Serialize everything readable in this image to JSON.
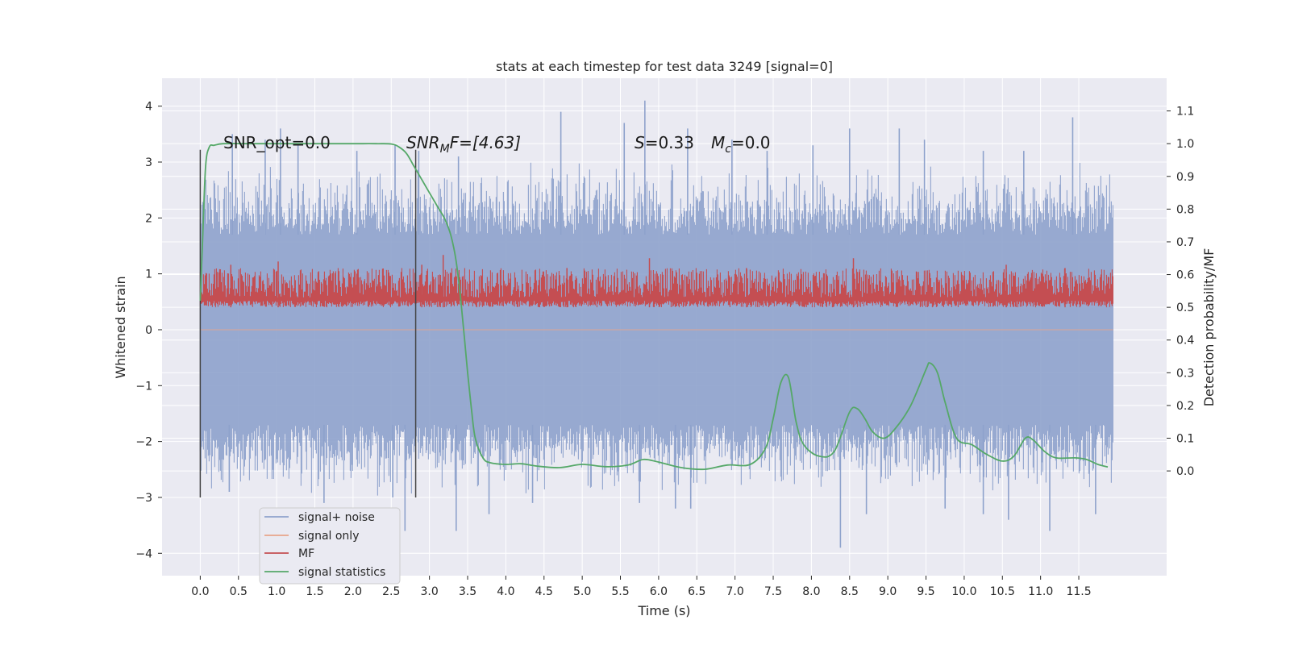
{
  "chart_data": {
    "type": "line",
    "title": "stats at each timestep for test data 3249 [signal=0]",
    "xlabel": "Time (s)",
    "ylabel": "Whitened strain",
    "ylabel_right": "Detection probability/MF",
    "xlim": [
      -0.5,
      12.65
    ],
    "ylim": [
      -4.4,
      4.5
    ],
    "ylim_right": [
      -0.32,
      1.2
    ],
    "xticks": [
      "0.0",
      "0.5",
      "1.0",
      "1.5",
      "2.0",
      "2.5",
      "3.0",
      "3.5",
      "4.0",
      "4.5",
      "5.0",
      "5.5",
      "6.0",
      "6.5",
      "7.0",
      "7.5",
      "8.0",
      "8.5",
      "9.0",
      "9.5",
      "10.0",
      "10.5",
      "11.0",
      "11.5"
    ],
    "yticks_left": [
      "4",
      "3",
      "2",
      "1",
      "0",
      "−1",
      "−2",
      "−3",
      "−4"
    ],
    "yticks_right": [
      "1.1",
      "1.0",
      "0.9",
      "0.8",
      "0.7",
      "0.6",
      "0.5",
      "0.4",
      "0.3",
      "0.2",
      "0.1",
      "0.0"
    ],
    "grid": true,
    "legend_position": "lower-left",
    "colors": {
      "background": "#eaeaf2",
      "grid": "#ffffff",
      "signal_noise": "#8ea2cc",
      "signal_only": "#e8a48a",
      "mf": "#c44e52",
      "signal_stats": "#55a868",
      "vline": "#444444"
    },
    "annotations": {
      "snr_opt": "SNR_opt=0.0",
      "snr_mf_prefix": "SNR",
      "snr_mf_sub": "M",
      "snr_mf_suffix": "F=[4.63]",
      "s_label": "S",
      "s_value": "=0.33",
      "mc_label": "M",
      "mc_sub": "c",
      "mc_value": "=0.0"
    },
    "vlines_x": [
      0.0,
      2.82
    ],
    "series": [
      {
        "name": "signal+ noise",
        "axis": "left",
        "style": "dense-noise",
        "x_range": [
          0.0,
          11.95
        ],
        "core_band": [
          -1.7,
          1.7
        ],
        "typical_range": [
          -3.0,
          3.0
        ],
        "peak_x": [
          0.42,
          0.85,
          1.05,
          1.28,
          2.05,
          2.55,
          2.86,
          3.38,
          4.72,
          5.55,
          5.82,
          6.38,
          6.96,
          7.42,
          8.02,
          8.5,
          9.15,
          9.48,
          10.25,
          10.78,
          11.42
        ],
        "peak_y": [
          3.5,
          3.4,
          3.6,
          3.3,
          3.2,
          3.3,
          3.2,
          3.1,
          3.9,
          3.7,
          4.1,
          3.6,
          3.4,
          3.2,
          3.3,
          3.6,
          3.6,
          3.4,
          3.2,
          3.2,
          3.8
        ],
        "trough_x": [
          0.38,
          1.62,
          2.52,
          2.68,
          3.35,
          3.78,
          4.35,
          5.75,
          6.22,
          6.42,
          8.38,
          8.72,
          9.75,
          10.25,
          10.58,
          11.12,
          11.72
        ],
        "trough_y": [
          -2.9,
          -3.1,
          -3.0,
          -3.6,
          -3.6,
          -3.3,
          -3.1,
          -3.1,
          -3.2,
          -3.2,
          -3.9,
          -3.3,
          -3.2,
          -3.3,
          -3.4,
          -3.6,
          -3.3
        ]
      },
      {
        "name": "signal only",
        "axis": "left",
        "style": "flat",
        "y": 0.0,
        "x_range": [
          0.0,
          11.95
        ]
      },
      {
        "name": "MF",
        "axis": "right",
        "style": "dense-noise",
        "x_range": [
          0.0,
          11.95
        ],
        "band": [
          0.5,
          0.59
        ],
        "spikes_x": [
          0.4,
          1.02,
          2.9,
          3.18,
          4.8,
          5.88,
          7.15,
          8.55,
          10.55,
          11.32
        ],
        "spikes_y": [
          0.63,
          0.64,
          0.63,
          0.66,
          0.62,
          0.65,
          0.62,
          0.65,
          0.63,
          0.62
        ]
      },
      {
        "name": "signal statistics",
        "axis": "right",
        "x": [
          0.0,
          0.03,
          0.07,
          0.12,
          0.18,
          0.3,
          0.6,
          1.0,
          1.5,
          2.0,
          2.3,
          2.5,
          2.6,
          2.7,
          2.8,
          2.9,
          3.0,
          3.1,
          3.2,
          3.28,
          3.35,
          3.42,
          3.5,
          3.55,
          3.6,
          3.7,
          3.8,
          4.0,
          4.2,
          4.4,
          4.7,
          5.0,
          5.3,
          5.6,
          5.8,
          6.0,
          6.3,
          6.6,
          6.9,
          7.2,
          7.4,
          7.5,
          7.6,
          7.7,
          7.8,
          7.9,
          8.1,
          8.3,
          8.5,
          8.6,
          8.7,
          8.8,
          8.95,
          9.1,
          9.3,
          9.5,
          9.55,
          9.65,
          9.75,
          9.9,
          10.1,
          10.3,
          10.5,
          10.65,
          10.8,
          10.9,
          11.05,
          11.2,
          11.45,
          11.6,
          11.75,
          11.88
        ],
        "y": [
          0.52,
          0.7,
          0.93,
          0.99,
          0.995,
          1.0,
          1.0,
          1.0,
          1.0,
          1.0,
          1.0,
          0.999,
          0.99,
          0.97,
          0.93,
          0.89,
          0.85,
          0.81,
          0.77,
          0.72,
          0.64,
          0.5,
          0.3,
          0.19,
          0.1,
          0.04,
          0.025,
          0.02,
          0.022,
          0.015,
          0.01,
          0.02,
          0.013,
          0.018,
          0.035,
          0.027,
          0.01,
          0.005,
          0.018,
          0.02,
          0.07,
          0.16,
          0.27,
          0.285,
          0.15,
          0.08,
          0.045,
          0.06,
          0.18,
          0.19,
          0.16,
          0.12,
          0.1,
          0.13,
          0.2,
          0.31,
          0.33,
          0.3,
          0.21,
          0.1,
          0.08,
          0.05,
          0.03,
          0.045,
          0.1,
          0.095,
          0.06,
          0.04,
          0.04,
          0.035,
          0.02,
          0.012
        ]
      }
    ]
  }
}
